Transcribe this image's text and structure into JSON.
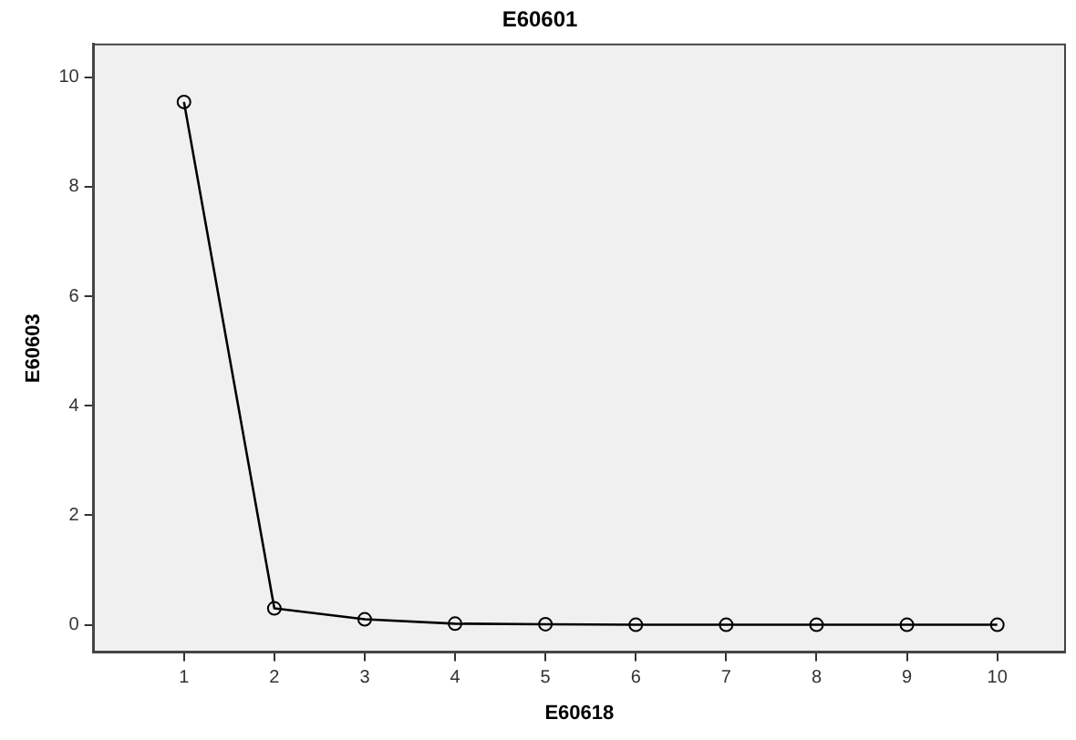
{
  "chart_data": {
    "type": "line",
    "title": "E60601",
    "xlabel": "E60618",
    "ylabel": "E60603",
    "x": [
      1,
      2,
      3,
      4,
      5,
      6,
      7,
      8,
      9,
      10
    ],
    "series": [
      {
        "color": "#000000",
        "values": [
          9.55,
          0.3,
          0.1,
          0.02,
          0.01,
          0,
          0,
          0,
          0,
          0
        ]
      }
    ],
    "xlim": [
      0,
      10.75
    ],
    "xticks": [
      1,
      2,
      3,
      4,
      5,
      6,
      7,
      8,
      9,
      10
    ],
    "ylim": [
      -0.5,
      10.6
    ],
    "yticks": [
      0,
      2,
      4,
      6,
      8,
      10
    ],
    "grid": false,
    "legend": false,
    "marker": "circle",
    "line_style": "solid"
  }
}
